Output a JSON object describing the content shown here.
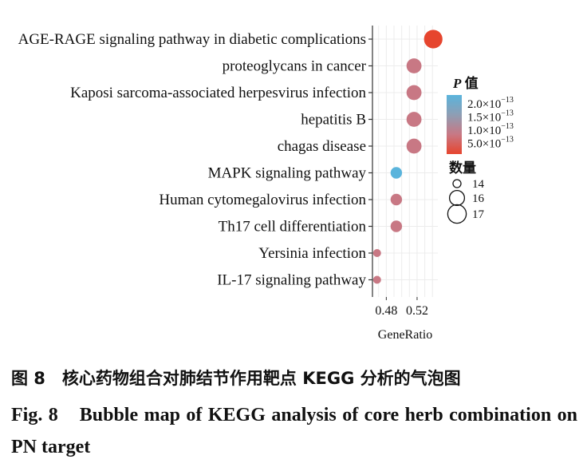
{
  "chart_data": {
    "type": "scatter",
    "title": "",
    "xlabel": "GeneRatio",
    "ylabel": "",
    "xlim": [
      0.462,
      0.547
    ],
    "x_ticks": [
      0.48,
      0.52
    ],
    "x_tick_labels": [
      "0.48",
      "0.52"
    ],
    "grid": true,
    "categories": [
      "AGE-RAGE signaling pathway in diabetic complications",
      "proteoglycans in cancer",
      "Kaposi sarcoma-associated herpesvirus infection",
      "hepatitis B",
      "chagas disease",
      "MAPK signaling pathway",
      "Human cytomegalovirus infection",
      "Th17 cell differentiation",
      "Yersinia infection",
      "IL-17 signaling pathway"
    ],
    "points": [
      {
        "category": "AGE-RAGE signaling pathway in diabetic complications",
        "x": 0.541,
        "p_value": 4e-14,
        "count": 17
      },
      {
        "category": "proteoglycans in cancer",
        "x": 0.516,
        "p_value": 1e-13,
        "count": 16
      },
      {
        "category": "Kaposi sarcoma-associated herpesvirus infection",
        "x": 0.516,
        "p_value": 1e-13,
        "count": 16
      },
      {
        "category": "hepatitis B",
        "x": 0.516,
        "p_value": 1e-13,
        "count": 16
      },
      {
        "category": "chagas disease",
        "x": 0.516,
        "p_value": 1e-13,
        "count": 16
      },
      {
        "category": "MAPK signaling pathway",
        "x": 0.493,
        "p_value": 2.1e-13,
        "count": 15
      },
      {
        "category": "Human cytomegalovirus infection",
        "x": 0.493,
        "p_value": 1e-13,
        "count": 15
      },
      {
        "category": "Th17 cell differentiation",
        "x": 0.493,
        "p_value": 1e-13,
        "count": 15
      },
      {
        "category": "Yersinia infection",
        "x": 0.468,
        "p_value": 1e-13,
        "count": 14
      },
      {
        "category": "IL-17 signaling pathway",
        "x": 0.468,
        "p_value": 1e-13,
        "count": 14
      }
    ],
    "color_legend": {
      "title_italic": "P",
      "title_rest": " 值",
      "entries": [
        "2.0×10",
        "1.5×10",
        "1.0×10",
        "5.0×10"
      ],
      "exponent": "−13",
      "colors": [
        "#5ab4dc",
        "#8e9eb4",
        "#c87884",
        "#e6452e"
      ],
      "range": [
        5e-14,
        2e-13
      ]
    },
    "size_legend": {
      "title": "数量",
      "entries": [
        "14",
        "16",
        "17"
      ],
      "values": [
        14,
        16,
        17
      ]
    },
    "legend_position": "right"
  },
  "caption": {
    "cn": "图 8　核心药物组合对肺结节作用靶点 KEGG 分析的气泡图",
    "en": "Fig. 8　Bubble map of KEGG analysis of core herb combination on PN target"
  }
}
